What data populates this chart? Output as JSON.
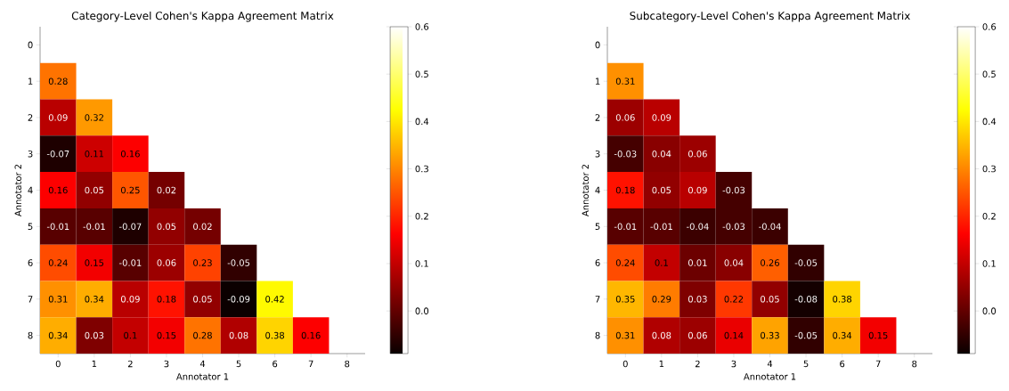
{
  "chart_data": [
    {
      "type": "heatmap",
      "title": "Category-Level Cohen's Kappa Agreement Matrix",
      "xlabel": "Annotator 1",
      "ylabel": "Annotator 2",
      "categories": [
        "0",
        "1",
        "2",
        "3",
        "4",
        "5",
        "6",
        "7",
        "8"
      ],
      "y_categories": [
        "0",
        "1",
        "2",
        "3",
        "4",
        "5",
        "6",
        "7",
        "8"
      ],
      "cells": [
        [
          null,
          null,
          null,
          null,
          null,
          null,
          null,
          null,
          null
        ],
        [
          0.28,
          null,
          null,
          null,
          null,
          null,
          null,
          null,
          null
        ],
        [
          0.09,
          0.32,
          null,
          null,
          null,
          null,
          null,
          null,
          null
        ],
        [
          -0.07,
          0.11,
          0.16,
          null,
          null,
          null,
          null,
          null,
          null
        ],
        [
          0.16,
          0.05,
          0.25,
          0.02,
          null,
          null,
          null,
          null,
          null
        ],
        [
          -0.01,
          -0.01,
          -0.07,
          0.05,
          0.02,
          null,
          null,
          null,
          null
        ],
        [
          0.24,
          0.15,
          -0.01,
          0.06,
          0.23,
          -0.05,
          null,
          null,
          null
        ],
        [
          0.31,
          0.34,
          0.09,
          0.18,
          0.05,
          -0.09,
          0.42,
          null,
          null
        ],
        [
          0.34,
          0.03,
          0.1,
          0.15,
          0.28,
          0.08,
          0.38,
          0.16,
          null
        ]
      ],
      "data_labels": true,
      "clim": [
        -0.09,
        0.6
      ],
      "cticks": [
        {
          "value": 0,
          "label": "0.0"
        },
        0.1,
        0.2,
        0.3,
        0.4,
        0.5,
        0.6
      ]
    },
    {
      "type": "heatmap",
      "title": "Subcategory-Level Cohen's Kappa Agreement Matrix",
      "xlabel": "Annotator 1",
      "ylabel": "Annotator 2",
      "categories": [
        "0",
        "1",
        "2",
        "3",
        "4",
        "5",
        "6",
        "7",
        "8"
      ],
      "y_categories": [
        "0",
        "1",
        "2",
        "3",
        "4",
        "5",
        "6",
        "7",
        "8"
      ],
      "cells": [
        [
          null,
          null,
          null,
          null,
          null,
          null,
          null,
          null,
          null
        ],
        [
          0.31,
          null,
          null,
          null,
          null,
          null,
          null,
          null,
          null
        ],
        [
          0.06,
          0.09,
          null,
          null,
          null,
          null,
          null,
          null,
          null
        ],
        [
          -0.03,
          0.04,
          0.06,
          null,
          null,
          null,
          null,
          null,
          null
        ],
        [
          0.18,
          0.05,
          0.09,
          -0.03,
          null,
          null,
          null,
          null,
          null
        ],
        [
          -0.01,
          -0.01,
          -0.04,
          -0.03,
          -0.04,
          null,
          null,
          null,
          null
        ],
        [
          0.24,
          0.1,
          0.01,
          0.04,
          0.26,
          -0.05,
          null,
          null,
          null
        ],
        [
          0.35,
          0.29,
          0.03,
          0.22,
          0.05,
          -0.08,
          0.38,
          null,
          null
        ],
        [
          0.31,
          0.08,
          0.06,
          0.14,
          0.33,
          -0.05,
          0.34,
          0.15,
          null
        ]
      ],
      "data_labels": true,
      "clim": [
        -0.09,
        0.6
      ],
      "cticks": [
        {
          "value": 0,
          "label": "0.0"
        },
        0.1,
        0.2,
        0.3,
        0.4,
        0.5,
        0.6
      ]
    }
  ]
}
